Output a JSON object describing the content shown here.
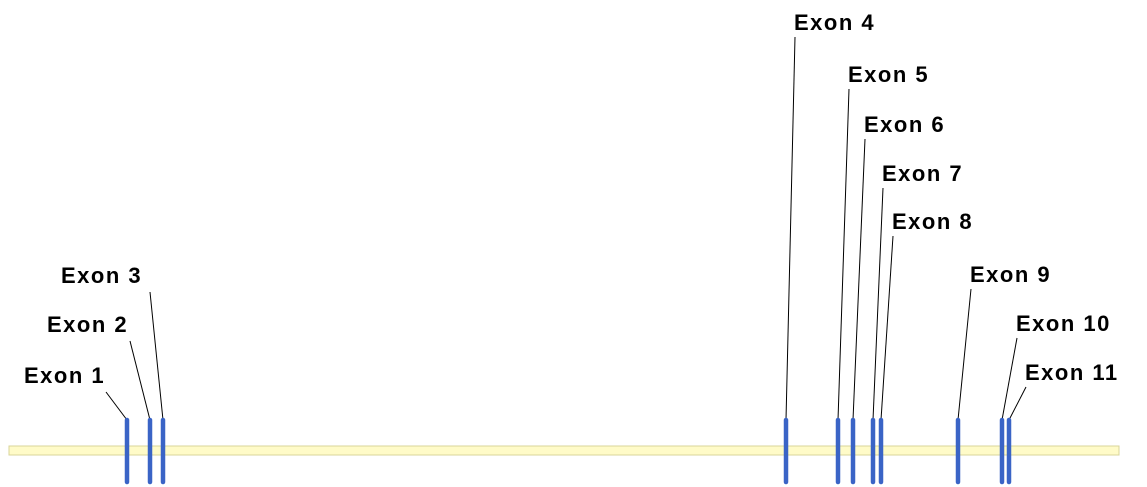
{
  "colors": {
    "background": "#ffffff",
    "gene_line_fill": "#fffbc8",
    "gene_line_stroke": "#d8d49a",
    "exon": "#3a64c6",
    "leader": "#000000",
    "label": "#000000"
  },
  "exons": [
    {
      "label": "Exon 1"
    },
    {
      "label": "Exon 2"
    },
    {
      "label": "Exon 3"
    },
    {
      "label": "Exon 4"
    },
    {
      "label": "Exon 5"
    },
    {
      "label": "Exon 6"
    },
    {
      "label": "Exon 7"
    },
    {
      "label": "Exon 8"
    },
    {
      "label": "Exon 9"
    },
    {
      "label": "Exon 10"
    },
    {
      "label": "Exon 11"
    }
  ]
}
